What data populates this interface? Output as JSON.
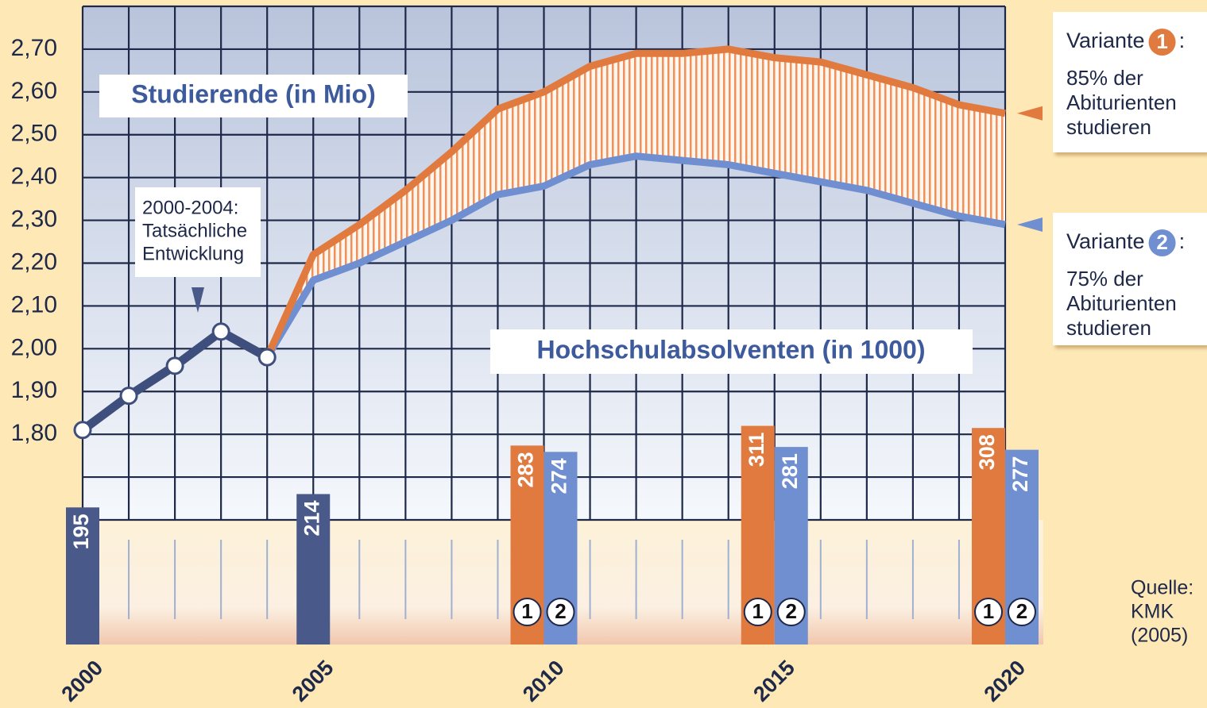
{
  "chart_data": [
    {
      "type": "line",
      "title": "Studierende (in Mio)",
      "x": [
        2000,
        2001,
        2002,
        2003,
        2004,
        2005,
        2006,
        2007,
        2008,
        2009,
        2010,
        2011,
        2012,
        2013,
        2014,
        2015,
        2016,
        2017,
        2018,
        2019,
        2020
      ],
      "xlim": [
        2000,
        2020
      ],
      "xticks": [
        2000,
        2005,
        2010,
        2015,
        2020
      ],
      "ylim": [
        1.6,
        2.8
      ],
      "yticks": [
        {
          "value": 1.8,
          "label": "1,80"
        },
        {
          "value": 1.9,
          "label": "1,90"
        },
        {
          "value": 2.0,
          "label": "2,00"
        },
        {
          "value": 2.1,
          "label": "2,10"
        },
        {
          "value": 2.2,
          "label": "2,20"
        },
        {
          "value": 2.3,
          "label": "2,30"
        },
        {
          "value": 2.4,
          "label": "2,40"
        },
        {
          "value": 2.5,
          "label": "2,50"
        },
        {
          "value": 2.6,
          "label": "2,60"
        },
        {
          "value": 2.7,
          "label": "2,70"
        }
      ],
      "grid": true,
      "grid_step": 0.1,
      "annotation": [
        "2000-2004:",
        "Tatsächliche",
        "Entwicklung"
      ],
      "series": [
        {
          "color": "#3f4f7d",
          "markers": true,
          "values": [
            1.81,
            1.89,
            1.96,
            2.04,
            1.98,
            null,
            null,
            null,
            null,
            null,
            null,
            null,
            null,
            null,
            null,
            null,
            null,
            null,
            null,
            null,
            null
          ]
        },
        {
          "name": "Variante",
          "badge": "1",
          "suffix": ":",
          "description": [
            "85% der",
            "Abiturienten",
            "studieren"
          ],
          "color": "#e07a3f",
          "values": [
            null,
            null,
            null,
            null,
            1.98,
            2.22,
            2.29,
            2.37,
            2.46,
            2.56,
            2.6,
            2.66,
            2.69,
            2.69,
            2.7,
            2.68,
            2.67,
            2.64,
            2.61,
            2.57,
            2.55
          ]
        },
        {
          "name": "Variante",
          "badge": "2",
          "suffix": ":",
          "description": [
            "75% der",
            "Abiturienten",
            "studieren"
          ],
          "color": "#6f8fd0",
          "values": [
            null,
            null,
            null,
            null,
            1.98,
            2.16,
            2.2,
            2.25,
            2.3,
            2.36,
            2.38,
            2.43,
            2.45,
            2.44,
            2.43,
            2.41,
            2.39,
            2.37,
            2.34,
            2.31,
            2.29
          ]
        }
      ]
    },
    {
      "type": "bar",
      "title": "Hochschulabsolventen (in 1000)",
      "x": [
        2000,
        2005,
        2010,
        2015,
        2020
      ],
      "ylim": [
        0,
        350
      ],
      "series": [
        {
          "color": "#48598a",
          "values": [
            195,
            214,
            null,
            null,
            null
          ]
        },
        {
          "name": "1",
          "color": "#e07a3f",
          "values": [
            null,
            null,
            283,
            311,
            308
          ]
        },
        {
          "name": "2",
          "color": "#6f8fd0",
          "values": [
            null,
            null,
            274,
            281,
            277
          ]
        }
      ],
      "source": [
        "Quelle:",
        "KMK",
        "(2005)"
      ]
    }
  ]
}
